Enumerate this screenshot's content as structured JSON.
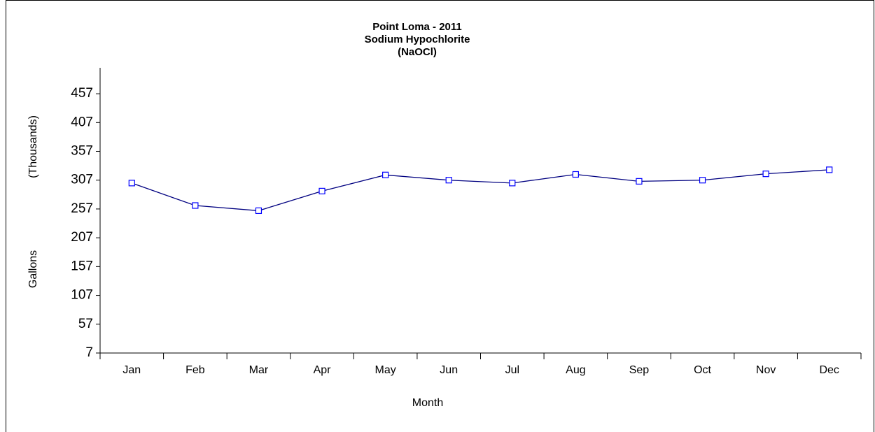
{
  "chart_data": {
    "type": "line",
    "title_lines": [
      "Point Loma - 2011",
      "Sodium Hypochlorite",
      "(NaOCl)"
    ],
    "x_label": "Month",
    "y_label_lines": [
      "(Thousands)",
      "Gallons"
    ],
    "categories": [
      "Jan",
      "Feb",
      "Mar",
      "Apr",
      "May",
      "Jun",
      "Jul",
      "Aug",
      "Sep",
      "Oct",
      "Nov",
      "Dec"
    ],
    "series": [
      {
        "name": "Sodium Hypochlorite",
        "color": "#000080",
        "marker_color": "#0000ff",
        "values": [
          302,
          263,
          254,
          288,
          316,
          307,
          302,
          317,
          305,
          307,
          318,
          325
        ]
      }
    ],
    "ylim": [
      7,
      502
    ],
    "yticks": [
      7,
      57,
      107,
      157,
      207,
      257,
      307,
      357,
      407,
      457
    ],
    "grid": false
  }
}
